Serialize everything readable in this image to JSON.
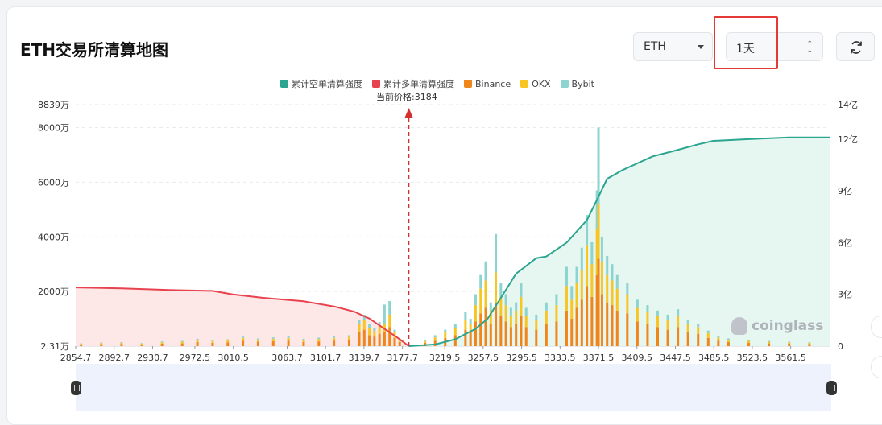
{
  "header": {
    "title": "ETH交易所清算地图"
  },
  "controls": {
    "coin": "ETH",
    "timeframe": "1天",
    "timeframe_arrows": "⌃⌄",
    "refresh_icon": "refresh-icon"
  },
  "watermark": "coinglass",
  "colors": {
    "short": "#2aa58f",
    "long": "#e8424f",
    "binance": "#f08519",
    "okx": "#f7c623",
    "bybit": "#8dd4d0"
  },
  "chart_data": {
    "type": "bar",
    "title": "",
    "legend": [
      "累计空单清算强度",
      "累计多单清算强度",
      "Binance",
      "OKX",
      "Bybit"
    ],
    "current_price_label": "当前价格:3184",
    "current_price": 3184,
    "x_tick_labels": [
      "2854.7",
      "2892.7",
      "2930.7",
      "2972.5",
      "3010.5",
      "3063.7",
      "3101.7",
      "3139.7",
      "3177.7",
      "3219.5",
      "3257.5",
      "3295.5",
      "3333.5",
      "3371.5",
      "3409.5",
      "3447.5",
      "3485.5",
      "3523.5",
      "3561.5"
    ],
    "x_range": [
      2854.7,
      3600
    ],
    "y_left_ticks": [
      "2.31万",
      "2000万",
      "4000万",
      "6000万",
      "8000万",
      "8839万"
    ],
    "y_left_range": [
      2.31,
      8839
    ],
    "y_right_ticks": [
      "0",
      "3亿",
      "6亿",
      "9亿",
      "12亿",
      "14亿"
    ],
    "y_right_range": [
      0,
      14
    ],
    "cumulative_long": {
      "x": [
        2854.7,
        2900,
        2950,
        2990,
        3010,
        3040,
        3080,
        3110,
        3130,
        3145,
        3160,
        3175,
        3184
      ],
      "y": [
        3.4,
        3.35,
        3.25,
        3.2,
        3.0,
        2.8,
        2.6,
        2.3,
        2.0,
        1.6,
        1.0,
        0.4,
        0
      ]
    },
    "cumulative_short": {
      "x": [
        3184,
        3210,
        3230,
        3250,
        3262,
        3275,
        3290,
        3310,
        3320,
        3340,
        3360,
        3371,
        3380,
        3395,
        3410,
        3425,
        3445,
        3470,
        3485,
        3520,
        3560,
        3600
      ],
      "y": [
        0,
        0.1,
        0.4,
        1.0,
        1.6,
        2.8,
        4.2,
        5.1,
        5.2,
        6.0,
        7.3,
        8.6,
        9.7,
        10.2,
        10.6,
        11.0,
        11.3,
        11.7,
        11.9,
        12.0,
        12.1,
        12.1
      ]
    },
    "bars": {
      "x": [
        2860,
        2880,
        2900,
        2920,
        2940,
        2960,
        2975,
        2990,
        3005,
        3020,
        3035,
        3050,
        3065,
        3080,
        3095,
        3110,
        3125,
        3135,
        3140,
        3145,
        3150,
        3155,
        3160,
        3165,
        3170,
        3175,
        3200,
        3210,
        3220,
        3230,
        3240,
        3245,
        3250,
        3255,
        3260,
        3265,
        3270,
        3275,
        3280,
        3285,
        3290,
        3295,
        3300,
        3310,
        3320,
        3330,
        3340,
        3345,
        3350,
        3355,
        3360,
        3365,
        3370,
        3371.5,
        3375,
        3380,
        3385,
        3390,
        3400,
        3410,
        3420,
        3430,
        3440,
        3450,
        3460,
        3470,
        3480,
        3490,
        3500,
        3520,
        3540,
        3560,
        3580
      ],
      "binance": [
        50,
        70,
        80,
        60,
        90,
        100,
        150,
        120,
        140,
        200,
        160,
        180,
        200,
        150,
        170,
        200,
        220,
        500,
        600,
        400,
        350,
        450,
        500,
        700,
        300,
        150,
        120,
        200,
        300,
        400,
        600,
        500,
        900,
        1200,
        1400,
        800,
        1600,
        1100,
        900,
        700,
        800,
        1100,
        700,
        600,
        800,
        900,
        1300,
        1000,
        1400,
        1700,
        2200,
        1800,
        2600,
        3200,
        1900,
        1600,
        1500,
        1300,
        1200,
        900,
        800,
        700,
        600,
        700,
        500,
        450,
        300,
        200,
        150,
        120,
        100,
        90,
        80
      ],
      "okx": [
        30,
        40,
        40,
        30,
        50,
        60,
        80,
        60,
        70,
        100,
        80,
        90,
        100,
        80,
        90,
        100,
        120,
        300,
        350,
        250,
        200,
        280,
        320,
        450,
        200,
        80,
        60,
        120,
        200,
        250,
        350,
        300,
        600,
        900,
        1000,
        500,
        1100,
        700,
        600,
        400,
        500,
        700,
        400,
        350,
        500,
        600,
        900,
        700,
        900,
        1100,
        1500,
        1200,
        1700,
        2000,
        1200,
        1000,
        900,
        800,
        700,
        500,
        450,
        400,
        350,
        400,
        300,
        250,
        180,
        120,
        90,
        70,
        60,
        50,
        40
      ],
      "bybit": [
        20,
        20,
        30,
        20,
        30,
        30,
        40,
        30,
        40,
        50,
        40,
        50,
        60,
        40,
        50,
        60,
        60,
        150,
        200,
        150,
        100,
        150,
        700,
        500,
        100,
        40,
        40,
        80,
        100,
        150,
        300,
        200,
        400,
        500,
        700,
        300,
        1400,
        500,
        400,
        300,
        300,
        500,
        300,
        200,
        300,
        400,
        700,
        500,
        600,
        800,
        1100,
        800,
        1400,
        2800,
        900,
        700,
        600,
        500,
        400,
        300,
        250,
        200,
        200,
        250,
        150,
        120,
        90,
        60,
        40,
        30,
        30,
        20,
        20
      ]
    }
  }
}
